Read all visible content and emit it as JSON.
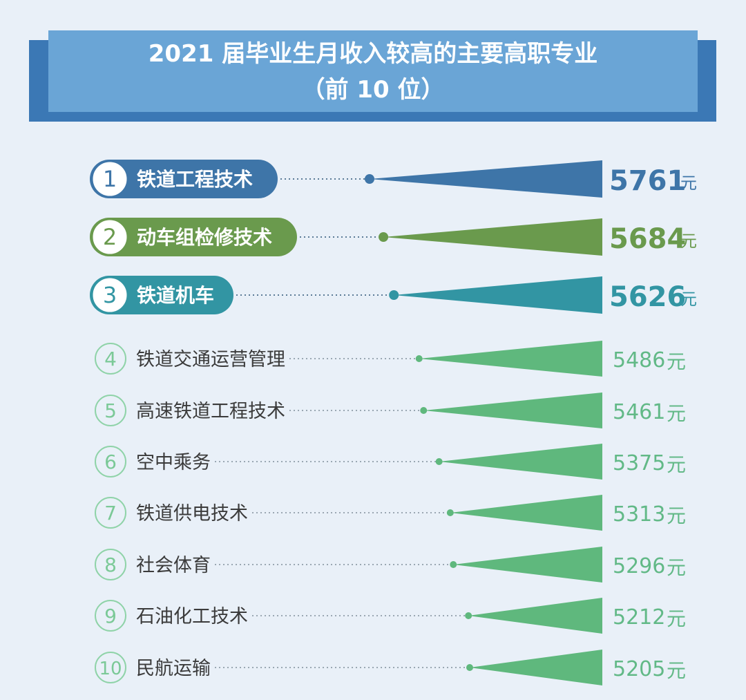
{
  "title_line1": "2021 届毕业生月收入较高的主要高职专业",
  "title_line2": "（前 10 位）",
  "unit": "元",
  "colors": {
    "rank1": "#3e75a8",
    "rank2": "#6a9a4d",
    "rank3": "#3295a3",
    "rest": "#5fb87d",
    "rest_text": "#3b3b3b",
    "value_rest": "#62b987"
  },
  "chart_data": {
    "type": "bar",
    "title": "2021 届毕业生月收入较高的主要高职专业（前 10 位）",
    "ranks": [
      "1",
      "2",
      "3",
      "4",
      "5",
      "6",
      "7",
      "8",
      "9",
      "10"
    ],
    "categories": [
      "铁道工程技术",
      "动车组检修技术",
      "铁道机车",
      "铁道交通运营管理",
      "高速铁道工程技术",
      "空中乘务",
      "铁道供电技术",
      "社会体育",
      "石油化工技术",
      "民航运输"
    ],
    "values": [
      5761,
      5684,
      5626,
      5486,
      5461,
      5375,
      5313,
      5296,
      5212,
      5205
    ],
    "unit": "元"
  }
}
